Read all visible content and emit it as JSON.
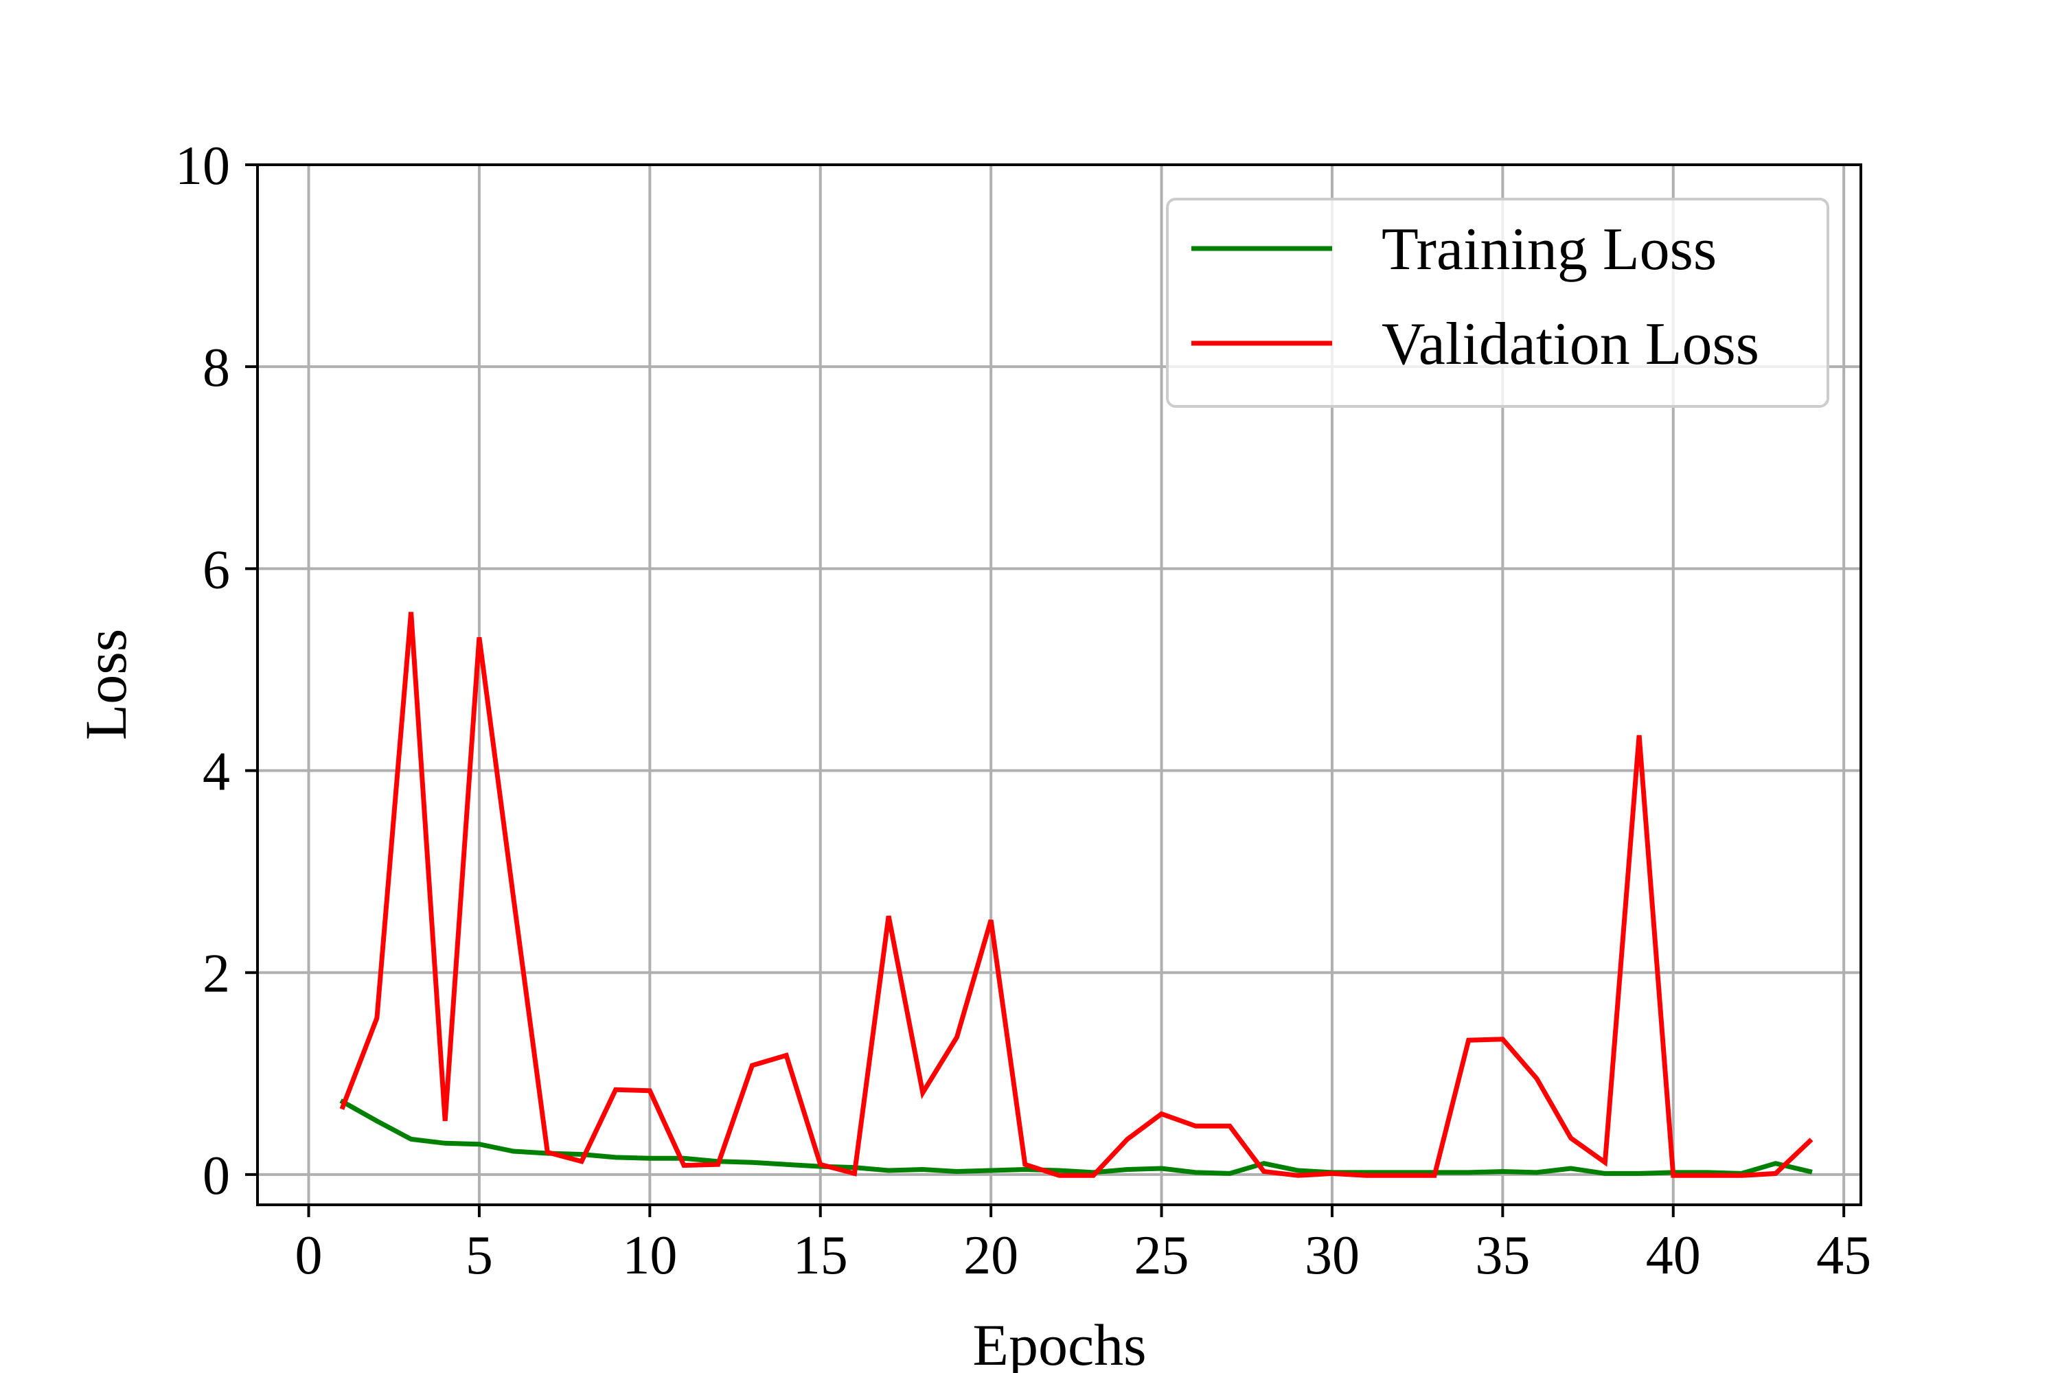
{
  "chart_data": {
    "type": "line",
    "xlabel": "Epochs",
    "ylabel": "Loss",
    "xlim": [
      -1.5,
      45.5
    ],
    "ylim": [
      -0.3,
      10
    ],
    "xticks": [
      0,
      5,
      10,
      15,
      20,
      25,
      30,
      35,
      40,
      45
    ],
    "yticks": [
      0,
      2,
      4,
      6,
      8,
      10
    ],
    "grid": true,
    "legend_position": "top-right",
    "x": [
      1,
      2,
      3,
      4,
      5,
      6,
      7,
      8,
      9,
      10,
      11,
      12,
      13,
      14,
      15,
      16,
      17,
      18,
      19,
      20,
      21,
      22,
      23,
      24,
      25,
      26,
      27,
      28,
      29,
      30,
      31,
      32,
      33,
      34,
      35,
      36,
      37,
      38,
      39,
      40,
      41,
      42,
      43,
      44
    ],
    "series": [
      {
        "name": "Training Loss",
        "color": "#008000",
        "values": [
          0.72,
          0.53,
          0.35,
          0.31,
          0.3,
          0.23,
          0.21,
          0.2,
          0.17,
          0.16,
          0.16,
          0.13,
          0.12,
          0.1,
          0.08,
          0.07,
          0.04,
          0.05,
          0.03,
          0.04,
          0.05,
          0.04,
          0.02,
          0.05,
          0.06,
          0.02,
          0.01,
          0.11,
          0.04,
          0.02,
          0.02,
          0.02,
          0.02,
          0.02,
          0.03,
          0.02,
          0.06,
          0.01,
          0.01,
          0.02,
          0.02,
          0.01,
          0.11,
          0.03
        ]
      },
      {
        "name": "Validation Loss",
        "color": "#ff0000",
        "values": [
          0.67,
          1.55,
          5.57,
          0.53,
          5.32,
          2.75,
          0.22,
          0.13,
          0.84,
          0.83,
          0.09,
          0.1,
          1.08,
          1.18,
          0.1,
          0.01,
          2.56,
          0.81,
          1.36,
          2.52,
          0.1,
          -0.01,
          -0.01,
          0.35,
          0.6,
          0.48,
          0.48,
          0.03,
          -0.01,
          0.01,
          -0.01,
          -0.01,
          -0.01,
          1.33,
          1.34,
          0.95,
          0.36,
          0.12,
          4.35,
          -0.01,
          -0.01,
          -0.01,
          0.01,
          0.33
        ]
      }
    ]
  }
}
